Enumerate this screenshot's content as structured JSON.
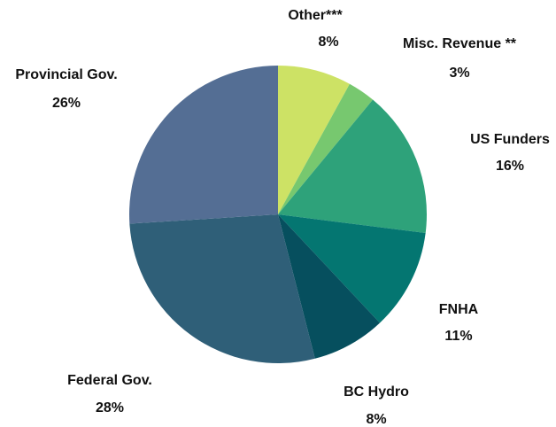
{
  "chart_data": {
    "type": "pie",
    "categories": [
      "Other***",
      "Misc. Revenue **",
      "US Funders",
      "FNHA",
      "BC Hydro",
      "Federal Gov.",
      "Provincial Gov."
    ],
    "values": [
      8,
      3,
      16,
      11,
      8,
      28,
      26
    ],
    "value_labels": [
      "8%",
      "3%",
      "16%",
      "11%",
      "8%",
      "28%",
      "26%"
    ],
    "colors": [
      "#cde265",
      "#77c86f",
      "#2ea27a",
      "#047671",
      "#064f5e",
      "#2f5f78",
      "#546e94"
    ]
  }
}
